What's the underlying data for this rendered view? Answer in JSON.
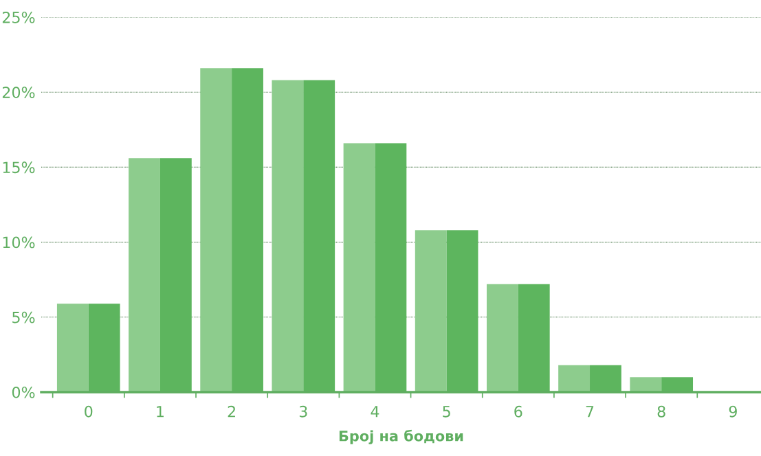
{
  "chart_data": {
    "type": "bar",
    "xlabel": "Број на бодови",
    "categories": [
      "0",
      "1",
      "2",
      "3",
      "4",
      "5",
      "6",
      "7",
      "8",
      "9"
    ],
    "series": [
      {
        "color": "#8dcc8d",
        "values": [
          5.9,
          15.6,
          21.6,
          20.8,
          16.6,
          10.8,
          7.2,
          1.8,
          1.0,
          0
        ]
      },
      {
        "color": "#5db55e",
        "values": [
          5.9,
          15.6,
          21.6,
          20.8,
          16.6,
          10.8,
          7.2,
          1.8,
          1.0,
          0
        ]
      }
    ],
    "ylim": [
      0,
      25
    ],
    "yticks": [
      {
        "value": 0,
        "label": "0%"
      },
      {
        "value": 5,
        "label": "5%"
      },
      {
        "value": 10,
        "label": "10%"
      },
      {
        "value": 15,
        "label": "15%"
      },
      {
        "value": 20,
        "label": "20%"
      },
      {
        "value": 25,
        "label": "25%"
      }
    ],
    "grid": "y"
  }
}
